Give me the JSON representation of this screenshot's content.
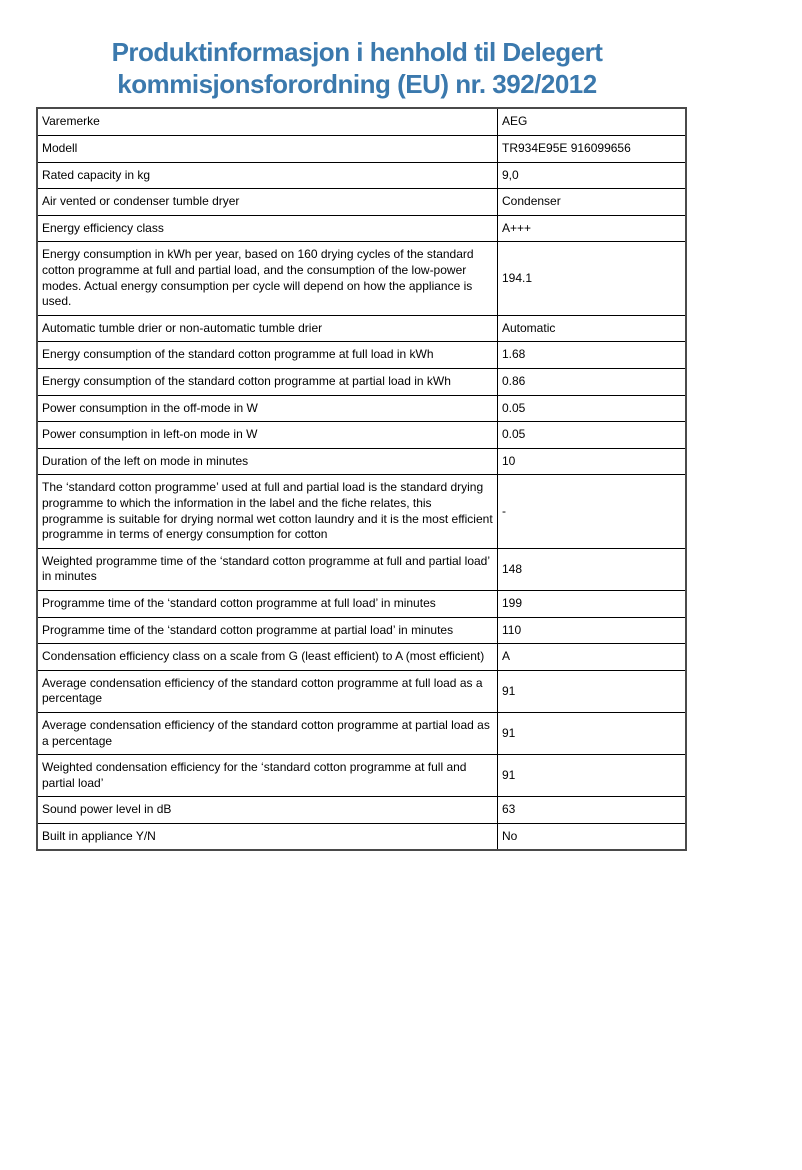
{
  "page": {
    "title": "Produktinformasjon i henhold til Delegert kommisjonsforordning (EU) nr. 392/2012",
    "title_color": "#3b79ad",
    "border_color": "#000000"
  },
  "table": {
    "rows": [
      {
        "label": "Varemerke",
        "value": "AEG"
      },
      {
        "label": "Modell",
        "value": "TR934E95E 916099656"
      },
      {
        "label": "Rated capacity in kg",
        "value": "9,0"
      },
      {
        "label": "Air vented or condenser tumble dryer",
        "value": "Condenser"
      },
      {
        "label": "Energy efficiency class",
        "value": "A+++"
      },
      {
        "label": "Energy consumption in kWh per year, based on 160 drying cycles of the standard cotton programme at full and partial load, and the consumption of the low-power modes. Actual energy consumption per cycle will depend on how the appliance is used.",
        "value": "194.1"
      },
      {
        "label": "Automatic tumble drier or non-automatic tumble drier",
        "value": "Automatic"
      },
      {
        "label": "Energy consumption of the standard cotton programme at full load in kWh",
        "value": "1.68"
      },
      {
        "label": "Energy consumption of the standard cotton programme at partial load in kWh",
        "value": "0.86"
      },
      {
        "label": "Power consumption in the off-mode in W",
        "value": "0.05"
      },
      {
        "label": "Power consumption in left-on mode in W",
        "value": "0.05"
      },
      {
        "label": "Duration of the left on mode in minutes",
        "value": "10"
      },
      {
        "label": "The ‘standard cotton programme’ used at full and partial load is the standard drying programme to which the information in the label and the fiche relates, this programme is suitable for drying normal wet cotton laundry and it is the most efficient programme in terms of energy consumption for cotton",
        "value": "-"
      },
      {
        "label": "Weighted programme time of the ‘standard cotton programme at full and partial load’ in minutes",
        "value": "148"
      },
      {
        "label": "Programme time of the ‘standard cotton programme at full load’ in minutes",
        "value": "199"
      },
      {
        "label": "Programme time of the ‘standard cotton programme at partial load’ in minutes",
        "value": "110"
      },
      {
        "label": "Condensation efficiency class on a scale from G (least efficient) to A (most efficient)",
        "value": "A"
      },
      {
        "label": "Average condensation efficiency of the standard cotton programme at full load as a percentage",
        "value": "91"
      },
      {
        "label": "Average condensation efficiency of the standard cotton programme at partial load as a percentage",
        "value": "91"
      },
      {
        "label": "Weighted condensation efficiency for the ‘standard cotton programme at full and partial load’",
        "value": "91"
      },
      {
        "label": "Sound power level in dB",
        "value": "63"
      },
      {
        "label": "Built in appliance Y/N",
        "value": "No"
      }
    ]
  }
}
